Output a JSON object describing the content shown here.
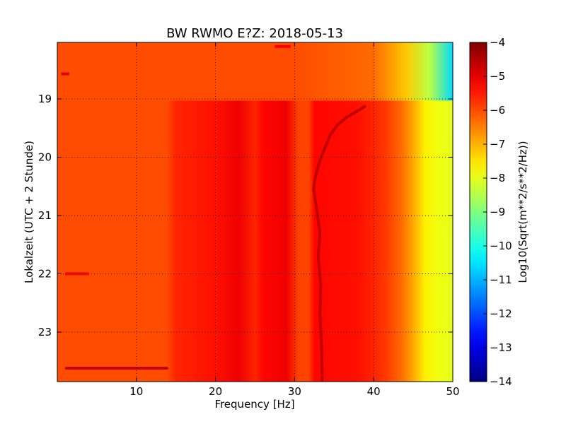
{
  "chart_data": {
    "type": "heatmap",
    "title": "BW RWMO E?Z: 2018-05-13",
    "xlabel": "Frequency [Hz]",
    "ylabel": "Lokalzeit (UTC + 2 Stunde)",
    "colorbar_label": "Log10(Sqrt(m**2/s**2/Hz))",
    "colormap": "jet",
    "xlim": [
      0,
      50
    ],
    "ylim_hours": [
      18.03,
      23.85
    ],
    "y_inverted": true,
    "x_ticks": [
      10,
      20,
      30,
      40,
      50
    ],
    "x_tick_labels": [
      "10",
      "20",
      "30",
      "40",
      "50"
    ],
    "y_ticks": [
      19,
      20,
      21,
      22,
      23
    ],
    "y_tick_labels": [
      "19",
      "20",
      "21",
      "22",
      "23"
    ],
    "color_range": [
      -14,
      -4
    ],
    "colorbar_ticks": [
      -4,
      -5,
      -6,
      -7,
      -8,
      -9,
      -10,
      -11,
      -12,
      -13,
      -14
    ],
    "colorbar_tick_labels": [
      "−4",
      "−5",
      "−6",
      "−7",
      "−8",
      "−9",
      "−10",
      "−11",
      "−12",
      "−13",
      "−14"
    ],
    "grid": true,
    "segments": [
      {
        "time_from": 18.03,
        "time_to": 19.03,
        "profile": [
          [
            0,
            -6.0
          ],
          [
            10,
            -6.0
          ],
          [
            20,
            -6.0
          ],
          [
            30,
            -6.0
          ],
          [
            40,
            -6.3
          ],
          [
            44,
            -7.2
          ],
          [
            47,
            -8.4
          ],
          [
            50,
            -10.6
          ]
        ]
      },
      {
        "time_from": 19.03,
        "time_to": 23.85,
        "profile": [
          [
            0,
            -6.0
          ],
          [
            13.8,
            -6.0
          ],
          [
            15,
            -5.6
          ],
          [
            20,
            -5.4
          ],
          [
            23,
            -5.1
          ],
          [
            25,
            -5.6
          ],
          [
            26,
            -5.3
          ],
          [
            29,
            -5.1
          ],
          [
            30.5,
            -5.9
          ],
          [
            31.8,
            -5.9
          ],
          [
            32.5,
            -5.3
          ],
          [
            38,
            -5.4
          ],
          [
            40,
            -5.6
          ],
          [
            41.5,
            -5.8
          ],
          [
            43.5,
            -6.3
          ],
          [
            45,
            -6.9
          ],
          [
            46.5,
            -7.6
          ],
          [
            48,
            -7.9
          ],
          [
            50,
            -8.0
          ]
        ]
      }
    ],
    "feature_curve": {
      "description_level": -4.6,
      "points": [
        [
          39.0,
          19.12
        ],
        [
          37.8,
          19.22
        ],
        [
          36.5,
          19.32
        ],
        [
          35.4,
          19.45
        ],
        [
          34.5,
          19.62
        ],
        [
          33.8,
          19.85
        ],
        [
          33.1,
          20.1
        ],
        [
          32.6,
          20.35
        ],
        [
          32.4,
          20.55
        ],
        [
          32.8,
          20.9
        ],
        [
          33.2,
          21.3
        ],
        [
          33.0,
          21.7
        ],
        [
          33.3,
          22.2
        ],
        [
          33.2,
          22.7
        ],
        [
          33.4,
          23.2
        ],
        [
          33.5,
          23.85
        ]
      ]
    },
    "horizontal_lines": [
      {
        "time": 23.62,
        "x_from": 1.0,
        "x_to": 14.0,
        "level": -4.7
      },
      {
        "time": 22.0,
        "x_from": 1.0,
        "x_to": 4.0,
        "level": -5.3
      },
      {
        "time": 18.57,
        "x_from": 0.5,
        "x_to": 1.5,
        "level": -5.0
      },
      {
        "time": 18.1,
        "x_from": 27.5,
        "x_to": 29.5,
        "level": -5.2
      }
    ]
  }
}
